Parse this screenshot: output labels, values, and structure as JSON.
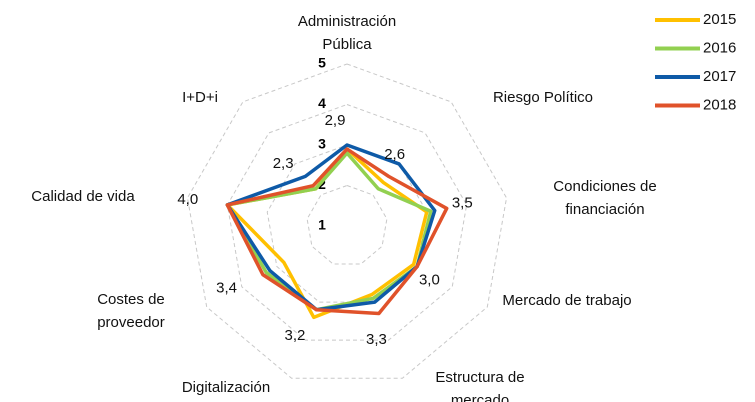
{
  "chart_data": {
    "type": "radar",
    "categories": [
      "Administración Pública",
      "Riesgo Político",
      "Condiciones de financiación",
      "Mercado de trabajo",
      "Estructura de mercado",
      "Digitalización",
      "Costes de proveedor",
      "Calidad de vida",
      "I+D+i"
    ],
    "ylim": [
      1,
      5
    ],
    "yticks": [
      1,
      2,
      3,
      4,
      5
    ],
    "grid": true,
    "legend": "upper right",
    "series": [
      {
        "name": "2015",
        "color": "#ffc000",
        "values": [
          2.9,
          2.4,
          3.0,
          2.9,
          2.8,
          3.4,
          2.8,
          4.0,
          2.2
        ]
      },
      {
        "name": "2016",
        "color": "#92d050",
        "values": [
          2.8,
          2.2,
          3.1,
          3.0,
          2.9,
          3.2,
          3.3,
          4.0,
          2.2
        ]
      },
      {
        "name": "2017",
        "color": "#0e5aa7",
        "values": [
          3.0,
          3.0,
          3.2,
          3.0,
          3.0,
          3.2,
          3.2,
          4.0,
          2.6
        ]
      },
      {
        "name": "2018",
        "color": "#e0522a",
        "values": [
          2.9,
          2.6,
          3.5,
          3.0,
          3.3,
          3.2,
          3.4,
          4.0,
          2.3
        ],
        "value_labels": [
          "2,9",
          "2,6",
          "3,5",
          "3,0",
          "3,3",
          "3,2",
          "3,4",
          "4,0",
          "2,3"
        ]
      }
    ]
  }
}
